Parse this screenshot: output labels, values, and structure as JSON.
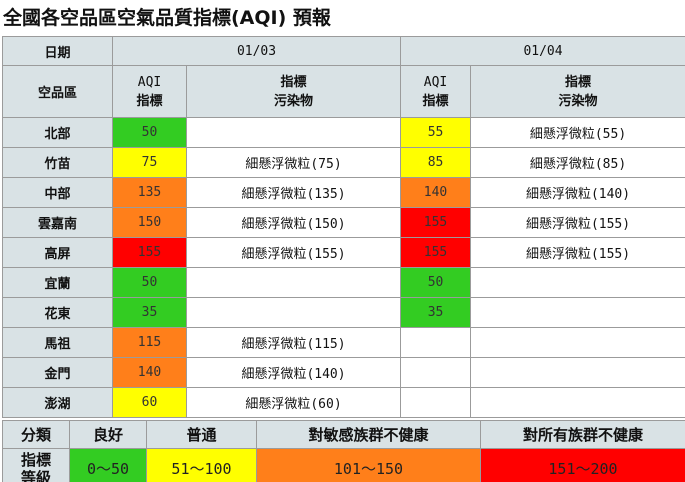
{
  "title": "全國各空品區空氣品質指標(AQI) 預報",
  "colors": {
    "good": "#33cc22",
    "moderate": "#ffff00",
    "sensitive": "#ff7f1a",
    "unhealthy": "#ff0000",
    "header_bg": "#d9e2e5"
  },
  "table": {
    "date_label": "日期",
    "region_label": "空品區",
    "aqi_header_1": "AQI",
    "aqi_header_2": "指標",
    "pollutant_header_1": "指標",
    "pollutant_header_2": "污染物",
    "days": [
      "01/03",
      "01/04"
    ],
    "rows": [
      {
        "region": "北部",
        "d1_aqi": "50",
        "d1_level": "good",
        "d1_pollutant": "",
        "d2_aqi": "55",
        "d2_level": "moderate",
        "d2_pollutant": "細懸浮微粒(55)"
      },
      {
        "region": "竹苗",
        "d1_aqi": "75",
        "d1_level": "moderate",
        "d1_pollutant": "細懸浮微粒(75)",
        "d2_aqi": "85",
        "d2_level": "moderate",
        "d2_pollutant": "細懸浮微粒(85)"
      },
      {
        "region": "中部",
        "d1_aqi": "135",
        "d1_level": "sensitive",
        "d1_pollutant": "細懸浮微粒(135)",
        "d2_aqi": "140",
        "d2_level": "sensitive",
        "d2_pollutant": "細懸浮微粒(140)"
      },
      {
        "region": "雲嘉南",
        "d1_aqi": "150",
        "d1_level": "sensitive",
        "d1_pollutant": "細懸浮微粒(150)",
        "d2_aqi": "155",
        "d2_level": "unhealthy",
        "d2_pollutant": "細懸浮微粒(155)"
      },
      {
        "region": "高屏",
        "d1_aqi": "155",
        "d1_level": "unhealthy",
        "d1_pollutant": "細懸浮微粒(155)",
        "d2_aqi": "155",
        "d2_level": "unhealthy",
        "d2_pollutant": "細懸浮微粒(155)"
      },
      {
        "region": "宜蘭",
        "d1_aqi": "50",
        "d1_level": "good",
        "d1_pollutant": "",
        "d2_aqi": "50",
        "d2_level": "good",
        "d2_pollutant": ""
      },
      {
        "region": "花東",
        "d1_aqi": "35",
        "d1_level": "good",
        "d1_pollutant": "",
        "d2_aqi": "35",
        "d2_level": "good",
        "d2_pollutant": ""
      },
      {
        "region": "馬祖",
        "d1_aqi": "115",
        "d1_level": "sensitive",
        "d1_pollutant": "細懸浮微粒(115)",
        "d2_aqi": "",
        "d2_level": "none",
        "d2_pollutant": ""
      },
      {
        "region": "金門",
        "d1_aqi": "140",
        "d1_level": "sensitive",
        "d1_pollutant": "細懸浮微粒(140)",
        "d2_aqi": "",
        "d2_level": "none",
        "d2_pollutant": ""
      },
      {
        "region": "澎湖",
        "d1_aqi": "60",
        "d1_level": "moderate",
        "d1_pollutant": "細懸浮微粒(60)",
        "d2_aqi": "",
        "d2_level": "none",
        "d2_pollutant": ""
      }
    ]
  },
  "legend": {
    "category_label": "分類",
    "index_label_1": "指標",
    "index_label_2": "等級",
    "levels": [
      {
        "key": "good",
        "name": "良好",
        "range": "0～50"
      },
      {
        "key": "moderate",
        "name": "普通",
        "range": "51～100"
      },
      {
        "key": "sensitive",
        "name": "對敏感族群不健康",
        "range": "101～150"
      },
      {
        "key": "unhealthy",
        "name": "對所有族群不健康",
        "range": "151～200"
      }
    ]
  }
}
